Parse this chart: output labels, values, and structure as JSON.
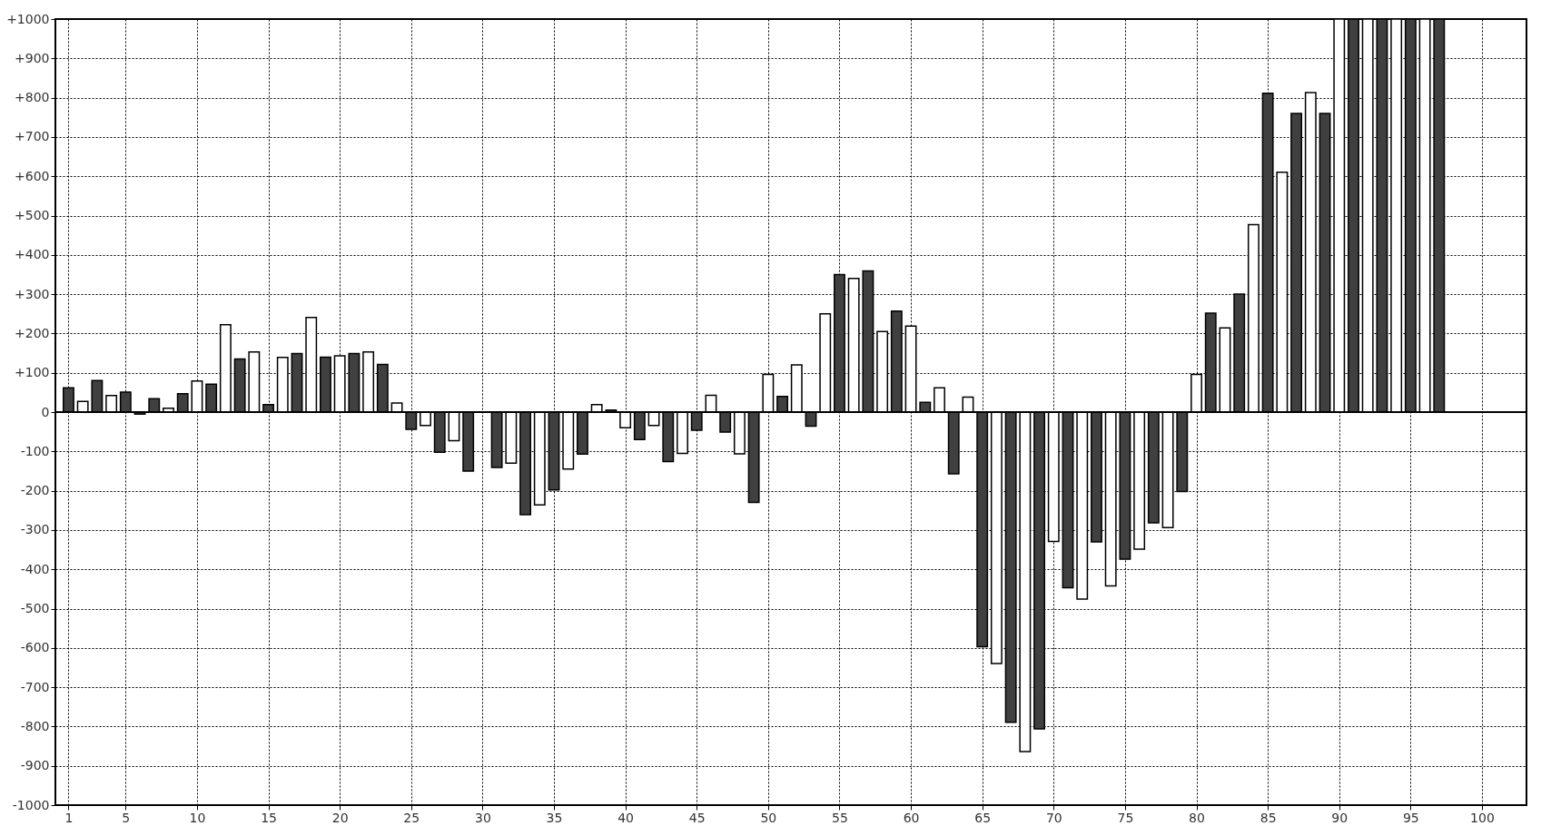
{
  "chart_data": {
    "type": "bar",
    "x": [
      1,
      2,
      3,
      4,
      5,
      6,
      7,
      8,
      9,
      10,
      11,
      12,
      13,
      14,
      15,
      16,
      17,
      18,
      19,
      20,
      21,
      22,
      23,
      24,
      25,
      26,
      27,
      28,
      29,
      30,
      31,
      32,
      33,
      34,
      35,
      36,
      37,
      38,
      39,
      40,
      41,
      42,
      43,
      44,
      45,
      46,
      47,
      48,
      49,
      50,
      51,
      52,
      53,
      54,
      55,
      56,
      57,
      58,
      59,
      60,
      61,
      62,
      63,
      64,
      65,
      66,
      67,
      68,
      69,
      70,
      71,
      72,
      73,
      74,
      75,
      76,
      77,
      78,
      79,
      80,
      81,
      82,
      83,
      84,
      85,
      86,
      87,
      88,
      89,
      90,
      91,
      92,
      93,
      94,
      95,
      96,
      97
    ],
    "values": [
      62,
      27,
      80,
      42,
      51,
      -5,
      34,
      10,
      47,
      79,
      71,
      222,
      135,
      153,
      19,
      139,
      149,
      241,
      140,
      143,
      149,
      153,
      121,
      23,
      -44,
      -34,
      -102,
      -73,
      -150,
      null,
      -141,
      -130,
      -261,
      -236,
      -198,
      -145,
      -107,
      19,
      5,
      -40,
      -70,
      -34,
      -126,
      -105,
      -46,
      43,
      -51,
      -106,
      -230,
      96,
      40,
      120,
      -36,
      250,
      350,
      340,
      359,
      205,
      257,
      219,
      25,
      62,
      -157,
      38,
      -597,
      -640,
      -789,
      -864,
      -806,
      -329,
      -447,
      -476,
      -330,
      -442,
      -374,
      -349,
      -282,
      -294,
      -202,
      96,
      252,
      214,
      300,
      477,
      811,
      610,
      760,
      813,
      760,
      1000,
      1000,
      1000,
      1000,
      1000,
      1000,
      1000,
      1000
    ],
    "colors": [
      "#404040",
      "#ffffff",
      "#404040",
      "#ffffff",
      "#404040",
      "#404040",
      "#404040",
      "#ffffff",
      "#404040",
      "#ffffff",
      "#404040",
      "#ffffff",
      "#404040",
      "#ffffff",
      "#404040",
      "#ffffff",
      "#404040",
      "#ffffff",
      "#404040",
      "#ffffff",
      "#404040",
      "#ffffff",
      "#404040",
      "#ffffff",
      "#404040",
      "#ffffff",
      "#404040",
      "#ffffff",
      "#404040",
      "#ffffff",
      "#404040",
      "#ffffff",
      "#404040",
      "#ffffff",
      "#404040",
      "#ffffff",
      "#404040",
      "#ffffff",
      "#404040",
      "#ffffff",
      "#404040",
      "#ffffff",
      "#404040",
      "#ffffff",
      "#404040",
      "#ffffff",
      "#404040",
      "#ffffff",
      "#404040",
      "#ffffff",
      "#404040",
      "#ffffff",
      "#404040",
      "#ffffff",
      "#404040",
      "#ffffff",
      "#404040",
      "#ffffff",
      "#404040",
      "#ffffff",
      "#404040",
      "#ffffff",
      "#404040",
      "#ffffff",
      "#404040",
      "#ffffff",
      "#404040",
      "#ffffff",
      "#404040",
      "#ffffff",
      "#404040",
      "#ffffff",
      "#404040",
      "#ffffff",
      "#404040",
      "#ffffff",
      "#404040",
      "#ffffff",
      "#404040",
      "#ffffff",
      "#404040",
      "#ffffff",
      "#404040",
      "#ffffff",
      "#404040",
      "#ffffff",
      "#404040",
      "#ffffff",
      "#404040",
      "#ffffff",
      "#404040",
      "#ffffff",
      "#404040",
      "#ffffff",
      "#404040",
      "#ffffff",
      "#404040"
    ],
    "xlim": [
      0.4,
      102.8
    ],
    "xticks": [
      1,
      5,
      10,
      15,
      20,
      25,
      30,
      35,
      40,
      45,
      50,
      55,
      60,
      65,
      70,
      75,
      80,
      85,
      90,
      95,
      100
    ],
    "ylim": [
      -1000,
      1000
    ],
    "yticks": [
      {
        "value": -1000,
        "label": "-1000"
      },
      {
        "value": -900,
        "label": "-900"
      },
      {
        "value": -800,
        "label": "-800"
      },
      {
        "value": -700,
        "label": "-700"
      },
      {
        "value": -600,
        "label": "-600"
      },
      {
        "value": -500,
        "label": "-500"
      },
      {
        "value": -400,
        "label": "-400"
      },
      {
        "value": -300,
        "label": "-300"
      },
      {
        "value": -200,
        "label": "-200"
      },
      {
        "value": -100,
        "label": "-100"
      },
      0,
      {
        "value": 100,
        "label": "+100"
      },
      {
        "value": 200,
        "label": "+200"
      },
      {
        "value": 300,
        "label": "+300"
      },
      {
        "value": 400,
        "label": "+400"
      },
      {
        "value": 500,
        "label": "+500"
      },
      {
        "value": 600,
        "label": "+600"
      },
      {
        "value": 700,
        "label": "+700"
      },
      {
        "value": 800,
        "label": "+800"
      },
      {
        "value": 900,
        "label": "+900"
      },
      {
        "value": 1000,
        "label": "+1000"
      }
    ],
    "ref_lines": [
      {
        "axis": "y",
        "value": 0,
        "color": "#000000"
      }
    ],
    "grid": true
  }
}
